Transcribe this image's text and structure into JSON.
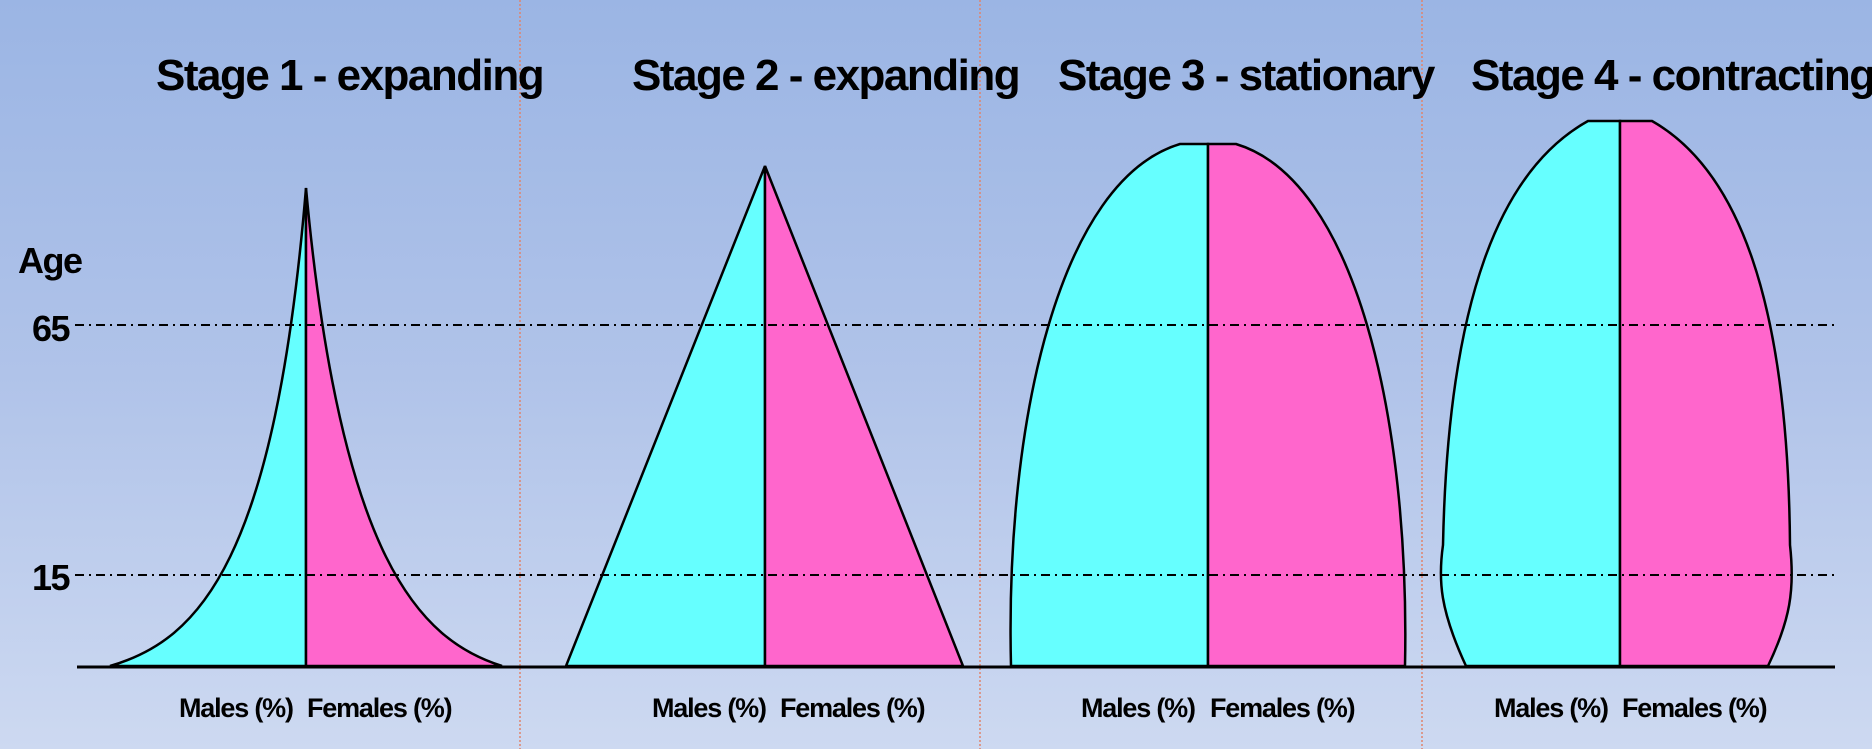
{
  "axis": {
    "label": "Age",
    "ticks": [
      "65",
      "15"
    ]
  },
  "stages": [
    {
      "title": "Stage 1 - expanding",
      "males_label": "Males (%)",
      "females_label": "Females (%)"
    },
    {
      "title": "Stage 2 - expanding",
      "males_label": "Males (%)",
      "females_label": "Females (%)"
    },
    {
      "title": "Stage 3 - stationary",
      "males_label": "Males (%)",
      "females_label": "Females (%)"
    },
    {
      "title": "Stage 4 - contracting",
      "males_label": "Males (%)",
      "females_label": "Females (%)"
    }
  ],
  "colors": {
    "males": "#66ffff",
    "females": "#ff66cc",
    "outline": "#000000",
    "divider": "#e0846c"
  }
}
